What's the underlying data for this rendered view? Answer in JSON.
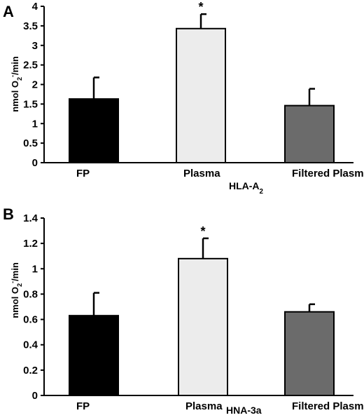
{
  "chart_data": [
    {
      "type": "bar",
      "panel": "A",
      "categories": [
        "FP",
        "Plasma",
        "Filtered Plasma"
      ],
      "values": [
        1.63,
        3.43,
        1.46
      ],
      "errors": [
        0.55,
        0.37,
        0.43
      ],
      "colors": [
        "#000000",
        "#ececec",
        "#6b6b6b"
      ],
      "significance": [
        "",
        "*",
        ""
      ],
      "ylabel": "nmol O2⁻/min",
      "ylabel_parts": {
        "pre": "nmol O",
        "sub": "2",
        "sup": "-",
        "post": "/min"
      },
      "ylim": [
        0,
        4
      ],
      "yticks": [
        0,
        0.5,
        1,
        1.5,
        2,
        2.5,
        3,
        3.5,
        4
      ],
      "ytick_labels": [
        "0",
        "0.5",
        "1",
        "1.5",
        "2",
        "2.5",
        "3",
        "3.5",
        "4"
      ],
      "group_label": "HLA-A2",
      "group_label_parts": {
        "pre": "HLA-A",
        "sub": "2"
      }
    },
    {
      "type": "bar",
      "panel": "B",
      "categories": [
        "FP",
        "Plasma",
        "Filtered Plasma"
      ],
      "values": [
        0.63,
        1.08,
        0.66
      ],
      "errors": [
        0.18,
        0.16,
        0.06
      ],
      "colors": [
        "#000000",
        "#ececec",
        "#6b6b6b"
      ],
      "significance": [
        "",
        "*",
        ""
      ],
      "ylabel": "nmol O2⁻/min",
      "ylabel_parts": {
        "pre": "nmol O",
        "sub": "2",
        "sup": "-",
        "post": "/min"
      },
      "ylim": [
        0,
        1.4
      ],
      "yticks": [
        0,
        0.2,
        0.4,
        0.6,
        0.8,
        1.0,
        1.2,
        1.4
      ],
      "ytick_labels": [
        "0",
        "0.2",
        "0.4",
        "0.6",
        "0.8",
        "1",
        "1.2",
        "1.4"
      ],
      "group_label": "HNA-3a",
      "group_label_parts": {
        "pre": "HNA-3a",
        "sub": ""
      }
    }
  ]
}
